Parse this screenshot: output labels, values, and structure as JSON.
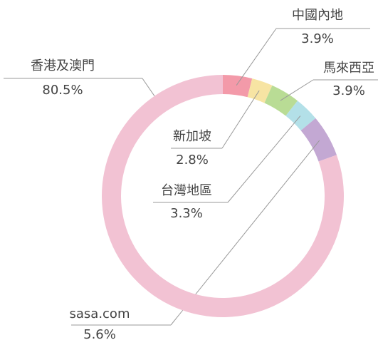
{
  "chart_data": {
    "type": "donut",
    "categories": [
      "中國內地",
      "新加坡",
      "馬來西亞",
      "台灣地區",
      "sasa.com",
      "香港及澳門"
    ],
    "values": [
      3.9,
      2.8,
      3.9,
      3.3,
      5.6,
      80.5
    ],
    "value_labels": [
      "3.9%",
      "2.8%",
      "3.9%",
      "3.3%",
      "5.6%",
      "80.5%"
    ],
    "colors": [
      "#f39aa9",
      "#f7e4a3",
      "#b9dc95",
      "#b3e0e8",
      "#c3a8d3",
      "#f2c2d3"
    ]
  }
}
